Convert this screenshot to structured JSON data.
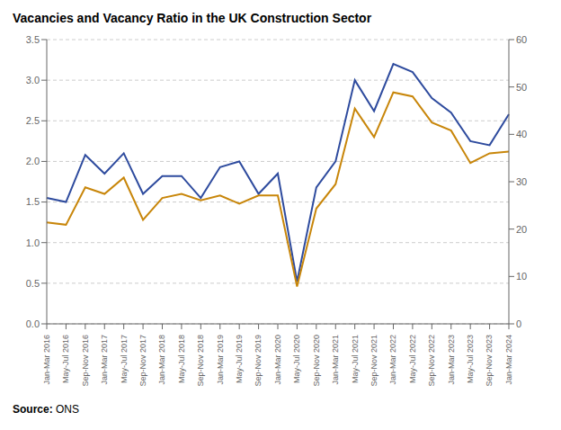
{
  "chart_data": {
    "type": "line",
    "title": "Vacancies and Vacancy Ratio in the UK Construction Sector",
    "annotations": [
      "Source: ONS"
    ],
    "categories": [
      "Jan-Mar 2016",
      "May-Jul 2016",
      "Sep-Nov 2016",
      "Jan-Mar 2017",
      "May-Jul 2017",
      "Sep-Nov 2017",
      "Jan-Mar 2018",
      "May-Jul 2018",
      "Sep-Nov 2018",
      "Jan-Mar 2019",
      "May-Jul 2019",
      "Sep-Nov 2019",
      "Jan-Mar 2020",
      "May-Jul 2020",
      "Sep-Nov 2020",
      "Jan-Mar 2021",
      "May-Jul 2021",
      "Sep-Nov 2021",
      "Jan-Mar 2022",
      "May-Jul 2022",
      "Sep-Nov 2022",
      "Jan-Mar 2023",
      "May-Jul 2023",
      "Sep-Nov 2023",
      "Jan-Mar 2024"
    ],
    "series": [
      {
        "color": "#2E4B9E",
        "values": [
          1.55,
          1.5,
          2.08,
          1.85,
          2.1,
          1.6,
          1.82,
          1.82,
          1.55,
          1.93,
          2.0,
          1.6,
          1.85,
          0.52,
          1.68,
          2.0,
          3.0,
          2.62,
          3.2,
          3.1,
          2.78,
          2.6,
          2.25,
          2.2,
          2.58
        ]
      },
      {
        "color": "#C8860A",
        "values": [
          1.25,
          1.22,
          1.68,
          1.6,
          1.8,
          1.28,
          1.55,
          1.6,
          1.52,
          1.58,
          1.48,
          1.58,
          1.58,
          0.46,
          1.42,
          1.72,
          2.65,
          2.3,
          2.85,
          2.8,
          2.48,
          2.38,
          1.98,
          2.1,
          2.12
        ]
      }
    ],
    "ylim": [
      0.0,
      3.5
    ],
    "yticks": [
      {
        "value": 0.0,
        "label": "0.0"
      },
      0.5,
      {
        "value": 1.0,
        "label": "1.0"
      },
      1.5,
      {
        "value": 2.0,
        "label": "2.0"
      },
      2.5,
      {
        "value": 3.0,
        "label": "3.0"
      },
      3.5
    ],
    "y2lim": [
      0,
      60
    ],
    "y2ticks": [
      0,
      10,
      20,
      30,
      40,
      50,
      60
    ],
    "grid": true
  }
}
